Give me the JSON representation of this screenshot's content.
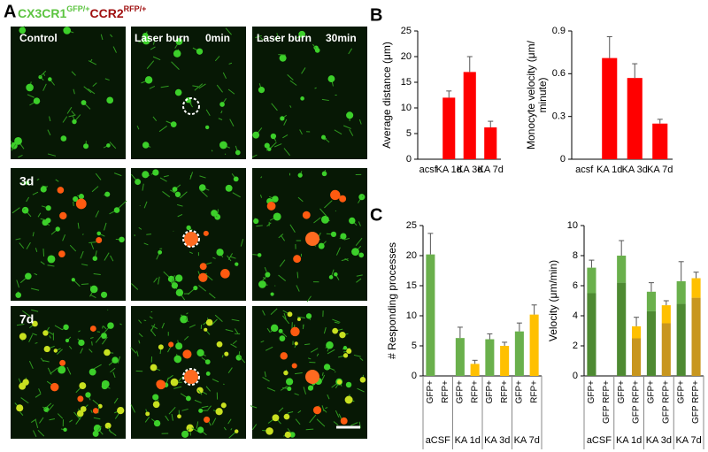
{
  "panel_labels": [
    "A",
    "B",
    "C"
  ],
  "header": {
    "gfp": "CX3CR1",
    "gfp_sup": "GFP/+",
    "rfp": "CCR2",
    "rfp_sup": "RFP/+"
  },
  "images": {
    "column_titles": [
      "Control",
      "Laser burn",
      "Laser burn"
    ],
    "times": [
      "0min",
      "30min"
    ],
    "row_titles": [
      "3d",
      "7d"
    ]
  },
  "chart_data": [
    {
      "type": "bar",
      "ylabel": [
        "Average distance (μm)"
      ],
      "categories": [
        "acsf",
        "KA 1d",
        "KA 3d",
        "KA 7d"
      ],
      "values": [
        0,
        12,
        17,
        6.2
      ],
      "errors": [
        0,
        1.3,
        3,
        1.2
      ],
      "color": "#ff0000",
      "ylim": [
        0,
        25
      ],
      "yticks": [
        0,
        5,
        10,
        15,
        20,
        25
      ]
    },
    {
      "type": "bar",
      "ylabel": [
        "Monocyte velocity (μm/",
        "minute)"
      ],
      "categories": [
        "acsf",
        "KA 1d",
        "KA 3d",
        "KA 7d"
      ],
      "values": [
        0,
        0.71,
        0.57,
        0.25
      ],
      "errors": [
        0,
        0.15,
        0.1,
        0.03
      ],
      "color": "#ff0000",
      "ylim": [
        0,
        0.9
      ],
      "yticks": [
        0,
        0.3,
        0.6,
        0.9
      ]
    },
    {
      "type": "bar",
      "ylabel": [
        "# Responding processes"
      ],
      "categories": [
        "GFP+",
        "RFP+",
        "GFP+",
        "RFP+",
        "GFP+",
        "RFP+",
        "GFP+",
        "RFP+"
      ],
      "groups": [
        "aCSF",
        "KA 1d",
        "KA 3d",
        "KA 7d"
      ],
      "values": [
        20.2,
        null,
        6.3,
        2.0,
        6.1,
        5.0,
        7.4,
        10.2
      ],
      "errors": [
        3.5,
        null,
        1.8,
        0.6,
        0.9,
        0.6,
        1.4,
        1.6
      ],
      "colors": [
        "#6ab04c",
        "#ffc000",
        "#6ab04c",
        "#ffc000",
        "#6ab04c",
        "#ffc000",
        "#6ab04c",
        "#ffc000"
      ],
      "ylim": [
        0,
        25
      ],
      "yticks": [
        0,
        5,
        10,
        15,
        20,
        25
      ]
    },
    {
      "type": "stacked_bar",
      "ylabel": [
        "Velocity (μm/min)"
      ],
      "categories": [
        "GFP+",
        "GFP RFP+",
        "GFP+",
        "GFP RFP+",
        "GFP+",
        "GFP RFP+",
        "GFP+",
        "GFP RFP+"
      ],
      "groups": [
        "aCSF",
        "KA 1d",
        "KA 3d",
        "KA 7d"
      ],
      "series": [
        {
          "colors": [
            "#4e8a32",
            "#c8961e",
            "#4e8a32",
            "#c8961e",
            "#4e8a32",
            "#c8961e",
            "#4e8a32",
            "#c8961e"
          ],
          "values": [
            5.5,
            null,
            6.2,
            2.5,
            4.3,
            3.5,
            4.8,
            5.2
          ]
        },
        {
          "colors": [
            "#6ab04c",
            "#ffc000",
            "#6ab04c",
            "#ffc000",
            "#6ab04c",
            "#ffc000",
            "#6ab04c",
            "#ffc000"
          ],
          "values": [
            1.7,
            null,
            1.8,
            0.8,
            1.3,
            1.2,
            1.5,
            1.3
          ],
          "errors": [
            0.5,
            null,
            1.0,
            0.6,
            0.6,
            0.3,
            1.3,
            0.4
          ]
        }
      ],
      "ylim": [
        0,
        10
      ],
      "yticks": [
        0,
        2,
        4,
        6,
        8,
        10
      ]
    }
  ]
}
